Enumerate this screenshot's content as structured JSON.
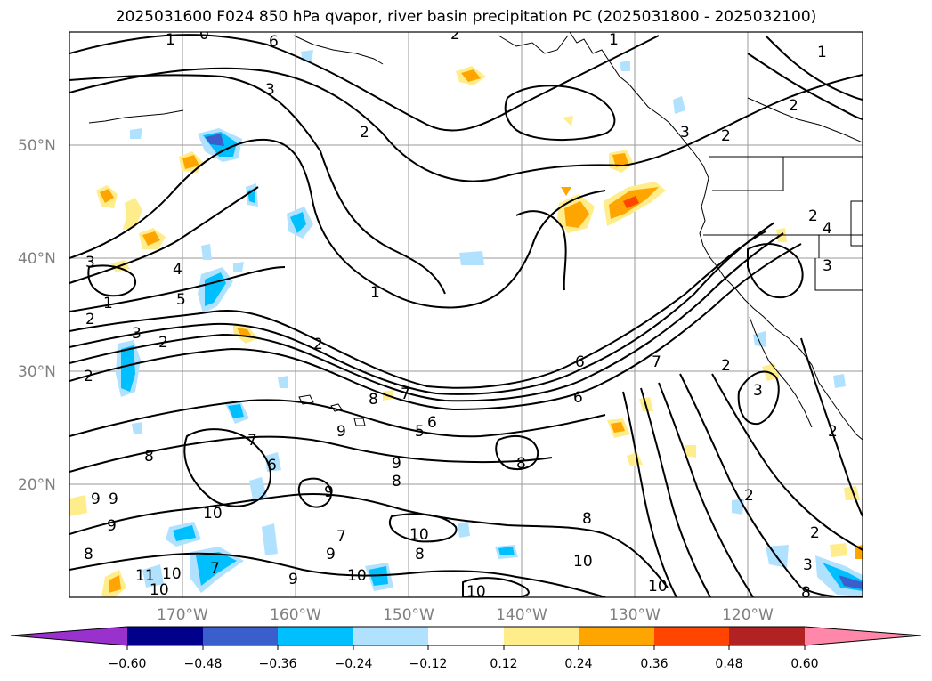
{
  "title": "2025031600 F024 850 hPa qvapor, river basin precipitation PC (2025031800 - 2025032100)",
  "map": {
    "lat_labels": [
      "50°N",
      "40°N",
      "30°N",
      "20°N"
    ],
    "lon_labels": [
      "170°W",
      "160°W",
      "150°W",
      "140°W",
      "130°W",
      "120°W"
    ],
    "contour_labels": [
      "1",
      "0",
      "6",
      "2",
      "1",
      "1",
      "3",
      "2",
      "2",
      "2",
      "3",
      "4",
      "2",
      "3",
      "4",
      "5",
      "3",
      "1",
      "2",
      "2",
      "2",
      "1",
      "3",
      "6",
      "7",
      "7",
      "6",
      "2",
      "8",
      "5",
      "6",
      "9",
      "3",
      "2",
      "8",
      "9",
      "6",
      "7",
      "8",
      "9",
      "9",
      "8",
      "9",
      "10",
      "9",
      "2",
      "7",
      "8",
      "2",
      "10",
      "8",
      "8",
      "9",
      "11",
      "10",
      "10",
      "7",
      "9",
      "10",
      "10",
      "2",
      "3",
      "10",
      "10",
      "8"
    ]
  },
  "colorbar": {
    "colors": [
      "#9932cc",
      "#00008b",
      "#3a5fcd",
      "#00bfff",
      "#b0e2ff",
      "#ffffff",
      "#ffec8b",
      "#ffa500",
      "#ff4500",
      "#b22222",
      "#ff88aa"
    ],
    "tick_labels": [
      "−0.60",
      "−0.48",
      "−0.36",
      "−0.24",
      "−0.12",
      "0.12",
      "0.24",
      "0.36",
      "0.48",
      "0.60"
    ]
  }
}
